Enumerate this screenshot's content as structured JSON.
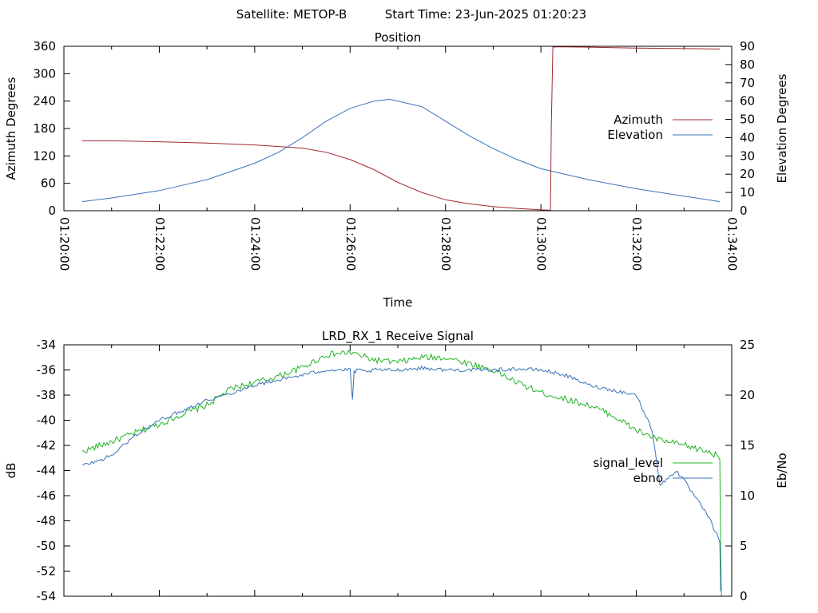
{
  "header": {
    "satellite_text": "Satellite: METOP-B",
    "start_time_text": "Start Time: 23-Jun-2025 01:20:23"
  },
  "chart_data": [
    {
      "type": "line",
      "title": "Position",
      "xlabel": "Time",
      "ylabel": "Azimuth Degrees",
      "y2label": "Elevation Degrees",
      "x_range": [
        "01:20:00",
        "01:34:00"
      ],
      "x_tick_labels": [
        "01:20:00",
        "01:22:00",
        "01:24:00",
        "01:26:00",
        "01:28:00",
        "01:30:00",
        "01:32:00",
        "01:34:00"
      ],
      "ylim": [
        0,
        360
      ],
      "y_ticks": [
        "0",
        "60",
        "120",
        "180",
        "240",
        "300",
        "360"
      ],
      "y2lim": [
        0,
        90
      ],
      "y2_ticks": [
        "0",
        "10",
        "20",
        "30",
        "40",
        "50",
        "60",
        "70",
        "80",
        "90"
      ],
      "legend_position": "right",
      "series": [
        {
          "name": "Azimuth",
          "axis": "y",
          "color": "#a02830",
          "x": [
            "01:20:23",
            "01:21:00",
            "01:22:00",
            "01:23:00",
            "01:24:00",
            "01:25:00",
            "01:25:30",
            "01:26:00",
            "01:26:30",
            "01:27:00",
            "01:27:30",
            "01:28:00",
            "01:28:30",
            "01:29:00",
            "01:29:30",
            "01:30:00",
            "01:30:12",
            "01:30:13",
            "01:30:15",
            "01:30:20",
            "01:31:00",
            "01:32:00",
            "01:33:00",
            "01:33:45"
          ],
          "values": [
            153,
            153,
            151,
            148,
            144,
            137,
            128,
            112,
            90,
            62,
            40,
            24,
            15,
            9,
            5,
            2,
            1,
            180,
            358,
            359,
            358,
            356,
            355,
            354
          ]
        },
        {
          "name": "Elevation",
          "axis": "y2",
          "color": "#3b72b8",
          "x": [
            "01:20:23",
            "01:21:00",
            "01:22:00",
            "01:23:00",
            "01:24:00",
            "01:24:30",
            "01:25:00",
            "01:25:30",
            "01:26:00",
            "01:26:30",
            "01:26:50",
            "01:27:30",
            "01:28:00",
            "01:28:30",
            "01:29:00",
            "01:29:30",
            "01:30:00",
            "01:30:30",
            "01:31:00",
            "01:32:00",
            "01:33:00",
            "01:33:45"
          ],
          "values": [
            5,
            7,
            11,
            17,
            26,
            32,
            40,
            49,
            56,
            60,
            61,
            57,
            49,
            41,
            34,
            28,
            23,
            20,
            17,
            12,
            8,
            5
          ]
        }
      ]
    },
    {
      "type": "line",
      "title": "LRD_RX_1 Receive Signal",
      "xlabel": "",
      "ylabel": "dB",
      "y2label": "Eb/No",
      "x_range": [
        "01:20:00",
        "01:34:00"
      ],
      "ylim": [
        -54,
        -34
      ],
      "y_ticks": [
        "-54",
        "-52",
        "-50",
        "-48",
        "-46",
        "-44",
        "-42",
        "-40",
        "-38",
        "-36",
        "-34"
      ],
      "y2lim": [
        0,
        25
      ],
      "y2_ticks": [
        "0",
        "5",
        "10",
        "15",
        "20",
        "25"
      ],
      "legend_position": "right",
      "series": [
        {
          "name": "signal_level",
          "axis": "y",
          "color": "#22b522",
          "x": [
            "01:20:23",
            "01:21:00",
            "01:21:30",
            "01:22:00",
            "01:22:30",
            "01:23:00",
            "01:23:30",
            "01:24:00",
            "01:24:30",
            "01:25:00",
            "01:25:30",
            "01:26:00",
            "01:26:30",
            "01:27:00",
            "01:27:30",
            "01:28:00",
            "01:28:30",
            "01:29:00",
            "01:29:30",
            "01:30:00",
            "01:30:30",
            "01:31:00",
            "01:31:30",
            "01:32:00",
            "01:32:30",
            "01:33:00",
            "01:33:30",
            "01:33:45",
            "01:33:46",
            "01:33:47"
          ],
          "values": [
            -42.5,
            -41.7,
            -41.0,
            -40.3,
            -39.5,
            -38.8,
            -37.5,
            -37.0,
            -36.5,
            -35.8,
            -34.8,
            -34.6,
            -35.2,
            -35.4,
            -35.0,
            -35.0,
            -35.5,
            -36.0,
            -37.0,
            -37.8,
            -38.3,
            -38.8,
            -39.6,
            -40.8,
            -41.6,
            -42.0,
            -42.5,
            -42.9,
            -50.0,
            -54.0
          ],
          "noise": 0.25
        },
        {
          "name": "ebno",
          "axis": "y2",
          "color": "#3b72b8",
          "x": [
            "01:20:23",
            "01:20:45",
            "01:21:00",
            "01:21:30",
            "01:22:00",
            "01:22:30",
            "01:23:00",
            "01:23:30",
            "01:24:00",
            "01:24:30",
            "01:25:00",
            "01:25:30",
            "01:26:00",
            "01:26:03",
            "01:26:05",
            "01:26:10",
            "01:26:20",
            "01:26:30",
            "01:27:00",
            "01:27:30",
            "01:28:00",
            "01:28:30",
            "01:29:00",
            "01:29:30",
            "01:30:00",
            "01:30:30",
            "01:31:00",
            "01:31:30",
            "01:32:00",
            "01:32:20",
            "01:32:30",
            "01:32:50",
            "01:33:00",
            "01:33:30",
            "01:33:45",
            "01:33:46"
          ],
          "values": [
            13.0,
            13.5,
            14.0,
            16.0,
            17.5,
            18.5,
            19.5,
            20.2,
            21.0,
            21.5,
            22.0,
            22.5,
            22.5,
            19.5,
            22.3,
            22.5,
            22.3,
            22.5,
            22.5,
            22.7,
            22.5,
            22.5,
            22.5,
            22.6,
            22.5,
            22.0,
            21.0,
            20.5,
            20.0,
            16.5,
            11.0,
            12.5,
            11.5,
            8.0,
            5.5,
            0.5
          ],
          "noise": 0.18
        }
      ]
    }
  ]
}
